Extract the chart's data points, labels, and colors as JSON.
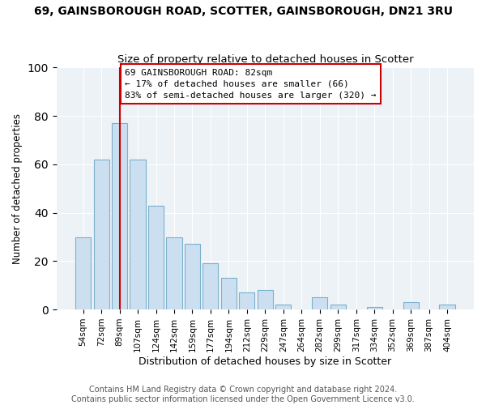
{
  "title": "69, GAINSBOROUGH ROAD, SCOTTER, GAINSBOROUGH, DN21 3RU",
  "subtitle": "Size of property relative to detached houses in Scotter",
  "xlabel": "Distribution of detached houses by size in Scotter",
  "ylabel": "Number of detached properties",
  "bar_labels": [
    "54sqm",
    "72sqm",
    "89sqm",
    "107sqm",
    "124sqm",
    "142sqm",
    "159sqm",
    "177sqm",
    "194sqm",
    "212sqm",
    "229sqm",
    "247sqm",
    "264sqm",
    "282sqm",
    "299sqm",
    "317sqm",
    "334sqm",
    "352sqm",
    "369sqm",
    "387sqm",
    "404sqm"
  ],
  "bar_values": [
    30,
    62,
    77,
    62,
    43,
    30,
    27,
    19,
    13,
    7,
    8,
    2,
    0,
    5,
    2,
    0,
    1,
    0,
    3,
    0,
    2
  ],
  "bar_color": "#ccdff0",
  "bar_edge_color": "#7ab0cc",
  "vline_x": 2,
  "vline_color": "#cc0000",
  "ylim": [
    0,
    100
  ],
  "annotation_line1": "69 GAINSBOROUGH ROAD: 82sqm",
  "annotation_line2": "← 17% of detached houses are smaller (66)",
  "annotation_line3": "83% of semi-detached houses are larger (320) →",
  "footer1": "Contains HM Land Registry data © Crown copyright and database right 2024.",
  "footer2": "Contains public sector information licensed under the Open Government Licence v3.0.",
  "title_fontsize": 10,
  "subtitle_fontsize": 9.5,
  "xlabel_fontsize": 9,
  "ylabel_fontsize": 8.5,
  "tick_fontsize": 7.5,
  "annotation_fontsize": 8,
  "footer_fontsize": 7,
  "bg_color": "#edf2f7"
}
